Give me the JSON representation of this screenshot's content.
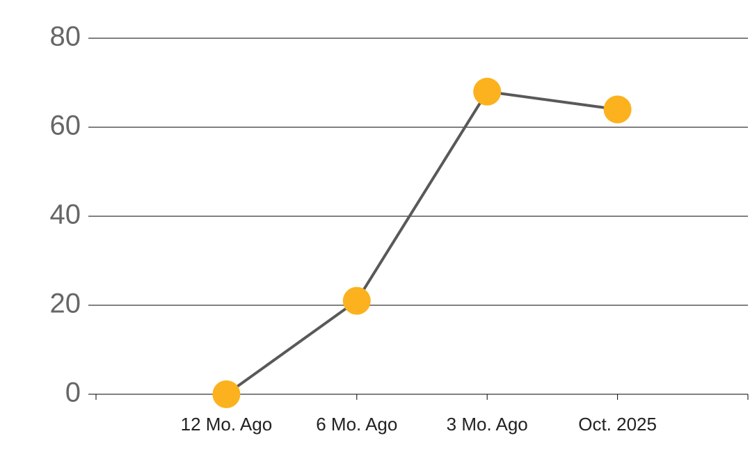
{
  "chart_data": {
    "type": "line",
    "categories": [
      "12 Mo. Ago",
      "6 Mo. Ago",
      "3 Mo. Ago",
      "Oct. 2025"
    ],
    "series": [
      {
        "values": [
          0,
          21,
          68,
          64
        ],
        "color": "#595959",
        "marker_color": "#fbb21e"
      }
    ],
    "ylim": [
      0,
      80
    ],
    "yticks": [
      0,
      20,
      40,
      60,
      80
    ],
    "grid": true
  }
}
